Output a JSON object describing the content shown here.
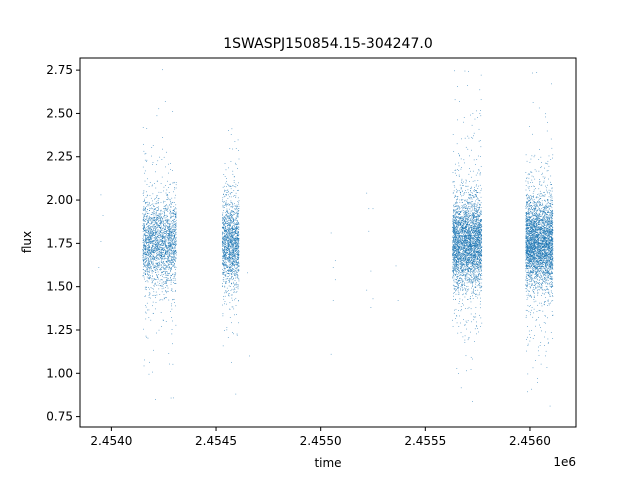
{
  "chart_data": {
    "type": "scatter",
    "title": "1SWASPJ150854.15-304247.0",
    "xlabel": "time",
    "ylabel": "flux",
    "x_offset_label": "1e6",
    "xlim": [
      2.45385,
      2.45622
    ],
    "ylim": [
      0.69,
      2.82
    ],
    "x_ticks": [
      2.454,
      2.4545,
      2.455,
      2.4555,
      2.456
    ],
    "x_tick_labels": [
      "2.4540",
      "2.4545",
      "2.4550",
      "2.4555",
      "2.4560"
    ],
    "y_ticks": [
      0.75,
      1.0,
      1.25,
      1.5,
      1.75,
      2.0,
      2.25,
      2.5,
      2.75
    ],
    "y_tick_labels": [
      "0.75",
      "1.00",
      "1.25",
      "1.50",
      "1.75",
      "2.00",
      "2.25",
      "2.50",
      "2.75"
    ],
    "point_color": "#1f77b4",
    "grid": false,
    "clusters": [
      {
        "x_range": [
          2.45415,
          2.45431
        ],
        "y_center": 1.76,
        "count": 2200
      },
      {
        "x_range": [
          2.45453,
          2.45461
        ],
        "y_center": 1.75,
        "count": 1500
      },
      {
        "x_range": [
          2.45563,
          2.45577
        ],
        "y_center": 1.76,
        "count": 3400
      },
      {
        "x_range": [
          2.45598,
          2.45611
        ],
        "y_center": 1.75,
        "count": 3600
      }
    ],
    "sparse_points": [
      {
        "x": 2.45395,
        "y": 1.76
      },
      {
        "x": 2.45396,
        "y": 1.91
      },
      {
        "x": 2.45394,
        "y": 1.61
      },
      {
        "x": 2.45395,
        "y": 2.03
      },
      {
        "x": 2.45465,
        "y": 1.58
      },
      {
        "x": 2.45466,
        "y": 1.1
      },
      {
        "x": 2.45505,
        "y": 1.81
      },
      {
        "x": 2.45505,
        "y": 1.11
      },
      {
        "x": 2.45506,
        "y": 1.42
      },
      {
        "x": 2.45506,
        "y": 1.61
      },
      {
        "x": 2.45507,
        "y": 1.65
      },
      {
        "x": 2.45507,
        "y": 1.54
      },
      {
        "x": 2.45522,
        "y": 2.04
      },
      {
        "x": 2.45522,
        "y": 1.48
      },
      {
        "x": 2.45523,
        "y": 1.95
      },
      {
        "x": 2.45523,
        "y": 1.82
      },
      {
        "x": 2.45524,
        "y": 1.38
      },
      {
        "x": 2.45524,
        "y": 1.59
      },
      {
        "x": 2.45525,
        "y": 1.95
      },
      {
        "x": 2.45525,
        "y": 1.43
      },
      {
        "x": 2.45537,
        "y": 1.42
      },
      {
        "x": 2.45536,
        "y": 1.62
      }
    ]
  }
}
